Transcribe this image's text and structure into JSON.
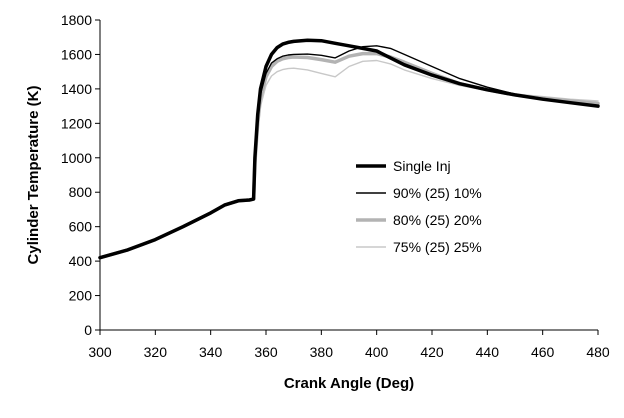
{
  "chart_data": {
    "type": "line",
    "title": "",
    "xlabel": "Crank Angle (Deg)",
    "ylabel": "Cylinder Temperature (K)",
    "xlim": [
      300,
      480
    ],
    "ylim": [
      0,
      1800
    ],
    "xticks": [
      300,
      320,
      340,
      360,
      380,
      400,
      420,
      440,
      460,
      480
    ],
    "yticks": [
      0,
      200,
      400,
      600,
      800,
      1000,
      1200,
      1400,
      1600,
      1800
    ],
    "grid": false,
    "legend_position": "right",
    "series": [
      {
        "name": "Single Inj",
        "color": "#000000",
        "x": [
          300,
          310,
          320,
          330,
          340,
          345,
          350,
          354,
          355.5,
          356,
          357,
          358,
          360,
          362,
          364,
          366,
          368,
          370,
          375,
          380,
          385,
          390,
          395,
          400,
          405,
          410,
          420,
          430,
          440,
          450,
          460,
          470,
          480
        ],
        "y": [
          420,
          465,
          525,
          600,
          680,
          725,
          750,
          755,
          760,
          1000,
          1250,
          1400,
          1530,
          1600,
          1640,
          1660,
          1670,
          1676,
          1682,
          1680,
          1665,
          1650,
          1635,
          1620,
          1580,
          1540,
          1480,
          1430,
          1395,
          1365,
          1340,
          1320,
          1300
        ]
      },
      {
        "name": "90% (25) 10%",
        "color": "#000000",
        "x": [
          300,
          310,
          320,
          330,
          340,
          345,
          350,
          354,
          355.5,
          356,
          357,
          358,
          360,
          362,
          364,
          366,
          368,
          370,
          375,
          380,
          385,
          390,
          395,
          400,
          405,
          410,
          420,
          430,
          440,
          450,
          460,
          470,
          480
        ],
        "y": [
          420,
          465,
          525,
          600,
          680,
          725,
          750,
          755,
          760,
          980,
          1220,
          1370,
          1490,
          1550,
          1575,
          1590,
          1597,
          1600,
          1602,
          1595,
          1580,
          1620,
          1645,
          1650,
          1635,
          1600,
          1530,
          1460,
          1410,
          1370,
          1345,
          1322,
          1305
        ]
      },
      {
        "name": "80% (25) 20%",
        "color": "#b3b3b3",
        "x": [
          300,
          310,
          320,
          330,
          340,
          345,
          350,
          354,
          355.5,
          356,
          357,
          358,
          360,
          362,
          364,
          366,
          368,
          370,
          375,
          380,
          385,
          390,
          395,
          400,
          405,
          410,
          420,
          430,
          440,
          450,
          460,
          470,
          480
        ],
        "y": [
          420,
          465,
          525,
          600,
          680,
          725,
          750,
          755,
          760,
          970,
          1200,
          1350,
          1470,
          1530,
          1560,
          1575,
          1582,
          1585,
          1582,
          1570,
          1555,
          1590,
          1605,
          1605,
          1585,
          1555,
          1490,
          1430,
          1395,
          1365,
          1345,
          1330,
          1315
        ]
      },
      {
        "name": "75% (25) 25%",
        "color": "#c8c8c8",
        "x": [
          300,
          310,
          320,
          330,
          340,
          345,
          350,
          354,
          355.5,
          356,
          357,
          358,
          360,
          362,
          364,
          366,
          368,
          370,
          375,
          380,
          385,
          390,
          395,
          400,
          405,
          410,
          420,
          430,
          440,
          450,
          460,
          470,
          480
        ],
        "y": [
          420,
          465,
          525,
          600,
          680,
          725,
          750,
          755,
          760,
          940,
          1150,
          1300,
          1420,
          1475,
          1500,
          1512,
          1518,
          1520,
          1510,
          1490,
          1470,
          1530,
          1560,
          1565,
          1545,
          1510,
          1460,
          1420,
          1390,
          1370,
          1355,
          1340,
          1330
        ]
      }
    ]
  }
}
